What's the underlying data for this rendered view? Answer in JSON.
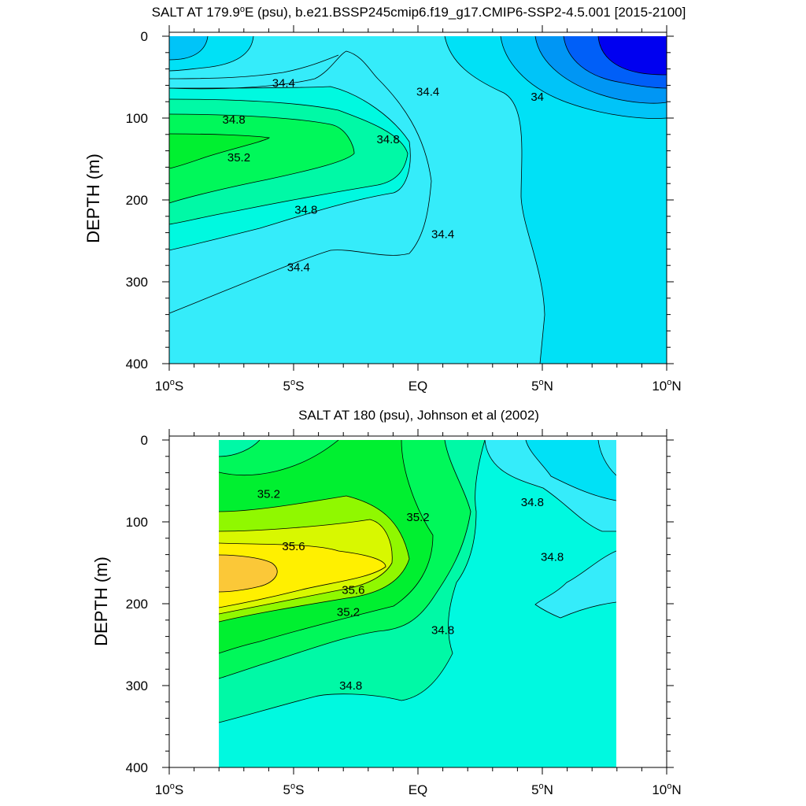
{
  "chart_data": [
    {
      "type": "contour",
      "title": "SALT AT 179.9°E (psu), b.e21.BSSP245cmip6.f19_g17.CMIP6-SSP2-4.5.001 [2015-2100]",
      "title_parts": [
        "SALT AT 179.9",
        "o",
        "E (psu), b.e21.BSSP245cmip6.f19_g17.CMIP6-SSP2-4.5.001 [2015-2100]"
      ],
      "ylabel": "DEPTH (m)",
      "xlabel": "",
      "xlim": [
        -10,
        10
      ],
      "ylim": [
        400,
        0
      ],
      "data_x_range": [
        -10,
        10
      ],
      "y_ticks": [
        "0",
        "100",
        "200",
        "300",
        "400"
      ],
      "x_ticks": [
        {
          "num": "10",
          "deg": "o",
          "hem": "S"
        },
        {
          "num": "5",
          "deg": "o",
          "hem": "S"
        },
        {
          "num": "EQ",
          "deg": "",
          "hem": ""
        },
        {
          "num": "5",
          "deg": "o",
          "hem": "N"
        },
        {
          "num": "10",
          "deg": "o",
          "hem": "N"
        }
      ],
      "contour_interval": 0.2,
      "contour_labels": [
        {
          "text": "34.4",
          "x": -5.4,
          "y": 57
        },
        {
          "text": "34.8",
          "x": -7.4,
          "y": 102
        },
        {
          "text": "35.2",
          "x": -7.2,
          "y": 148
        },
        {
          "text": "34.8",
          "x": -1.2,
          "y": 126
        },
        {
          "text": "34.4",
          "x": 0.4,
          "y": 68
        },
        {
          "text": "34",
          "x": 4.8,
          "y": 74
        },
        {
          "text": "34.8",
          "x": -4.5,
          "y": 212
        },
        {
          "text": "34.4",
          "x": -4.8,
          "y": 282
        },
        {
          "text": "34.4",
          "x": 1.0,
          "y": 242
        }
      ]
    },
    {
      "type": "contour",
      "title": "SALT AT 180 (psu), Johnson et al (2002)",
      "ylabel": "DEPTH (m)",
      "xlabel": "",
      "xlim": [
        -10,
        10
      ],
      "ylim": [
        400,
        0
      ],
      "data_x_range": [
        -8,
        8
      ],
      "y_ticks": [
        "0",
        "100",
        "200",
        "300",
        "400"
      ],
      "x_ticks": [
        {
          "num": "10",
          "deg": "o",
          "hem": "S"
        },
        {
          "num": "5",
          "deg": "o",
          "hem": "S"
        },
        {
          "num": "EQ",
          "deg": "",
          "hem": ""
        },
        {
          "num": "5",
          "deg": "o",
          "hem": "N"
        },
        {
          "num": "10",
          "deg": "o",
          "hem": "N"
        }
      ],
      "contour_interval": 0.2,
      "contour_labels": [
        {
          "text": "35.2",
          "x": -6.0,
          "y": 66
        },
        {
          "text": "35.6",
          "x": -5.0,
          "y": 130
        },
        {
          "text": "35.6",
          "x": -2.6,
          "y": 183
        },
        {
          "text": "35.2",
          "x": -2.8,
          "y": 210
        },
        {
          "text": "35.2",
          "x": 0.0,
          "y": 94
        },
        {
          "text": "34.8",
          "x": 4.6,
          "y": 76
        },
        {
          "text": "34.8",
          "x": 5.4,
          "y": 143
        },
        {
          "text": "34.8",
          "x": 1.0,
          "y": 232
        },
        {
          "text": "34.8",
          "x": -2.7,
          "y": 300
        }
      ]
    }
  ],
  "color_scale": [
    {
      "level": 33.6,
      "color": "#0000f0"
    },
    {
      "level": 33.8,
      "color": "#005ff8"
    },
    {
      "level": 34.0,
      "color": "#0096f4"
    },
    {
      "level": 34.2,
      "color": "#00c4f8"
    },
    {
      "level": 34.4,
      "color": "#00e1f6"
    },
    {
      "level": 34.6,
      "color": "#35ecfa"
    },
    {
      "level": 34.8,
      "color": "#00f9e0"
    },
    {
      "level": 35.0,
      "color": "#00f9a6"
    },
    {
      "level": 35.2,
      "color": "#00f85a"
    },
    {
      "level": 35.4,
      "color": "#00f030"
    },
    {
      "level": 35.6,
      "color": "#90f800"
    },
    {
      "level": 35.8,
      "color": "#d8f800"
    },
    {
      "level": 36.0,
      "color": "#fff000"
    },
    {
      "level": 36.2,
      "color": "#fde03c"
    },
    {
      "level": 36.4,
      "color": "#fbc838"
    }
  ]
}
